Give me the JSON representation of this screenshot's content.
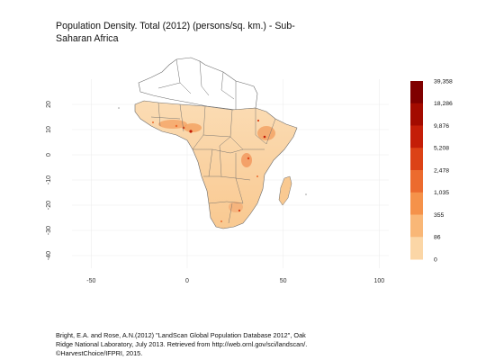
{
  "title": "Population Density. Total (2012) (persons/sq. km.) - Sub-Saharan Africa",
  "chart_data": {
    "type": "heatmap",
    "x_ticks": [
      "-50",
      "0",
      "50",
      "100"
    ],
    "y_ticks": [
      "20",
      "10",
      "0",
      "-10",
      "-20",
      "-30",
      "-40"
    ],
    "xlim": [
      -60,
      105
    ],
    "ylim": [
      -45,
      30
    ],
    "grid": true,
    "legend": {
      "placement": "right",
      "labels": [
        "39,358",
        "18,286",
        "9,876",
        "5,208",
        "2,478",
        "1,035",
        "355",
        "86",
        "0"
      ],
      "colors": [
        "#7f0000",
        "#a30b00",
        "#c41e08",
        "#dc4216",
        "#ec6b2e",
        "#f5924a",
        "#f9b777",
        "#fbd6a6",
        "#fdf0dc"
      ]
    }
  },
  "credit": {
    "line1": "Bright, E.A. and Rose, A.N.(2012) \"LandScan Global Population Database 2012\", Oak",
    "line2": "Ridge National Laboratory, July 2013. Retrieved from http://web.ornl.gov/sci/landscan/.",
    "line3": "©HarvestChoice/IFPRI, 2015."
  }
}
